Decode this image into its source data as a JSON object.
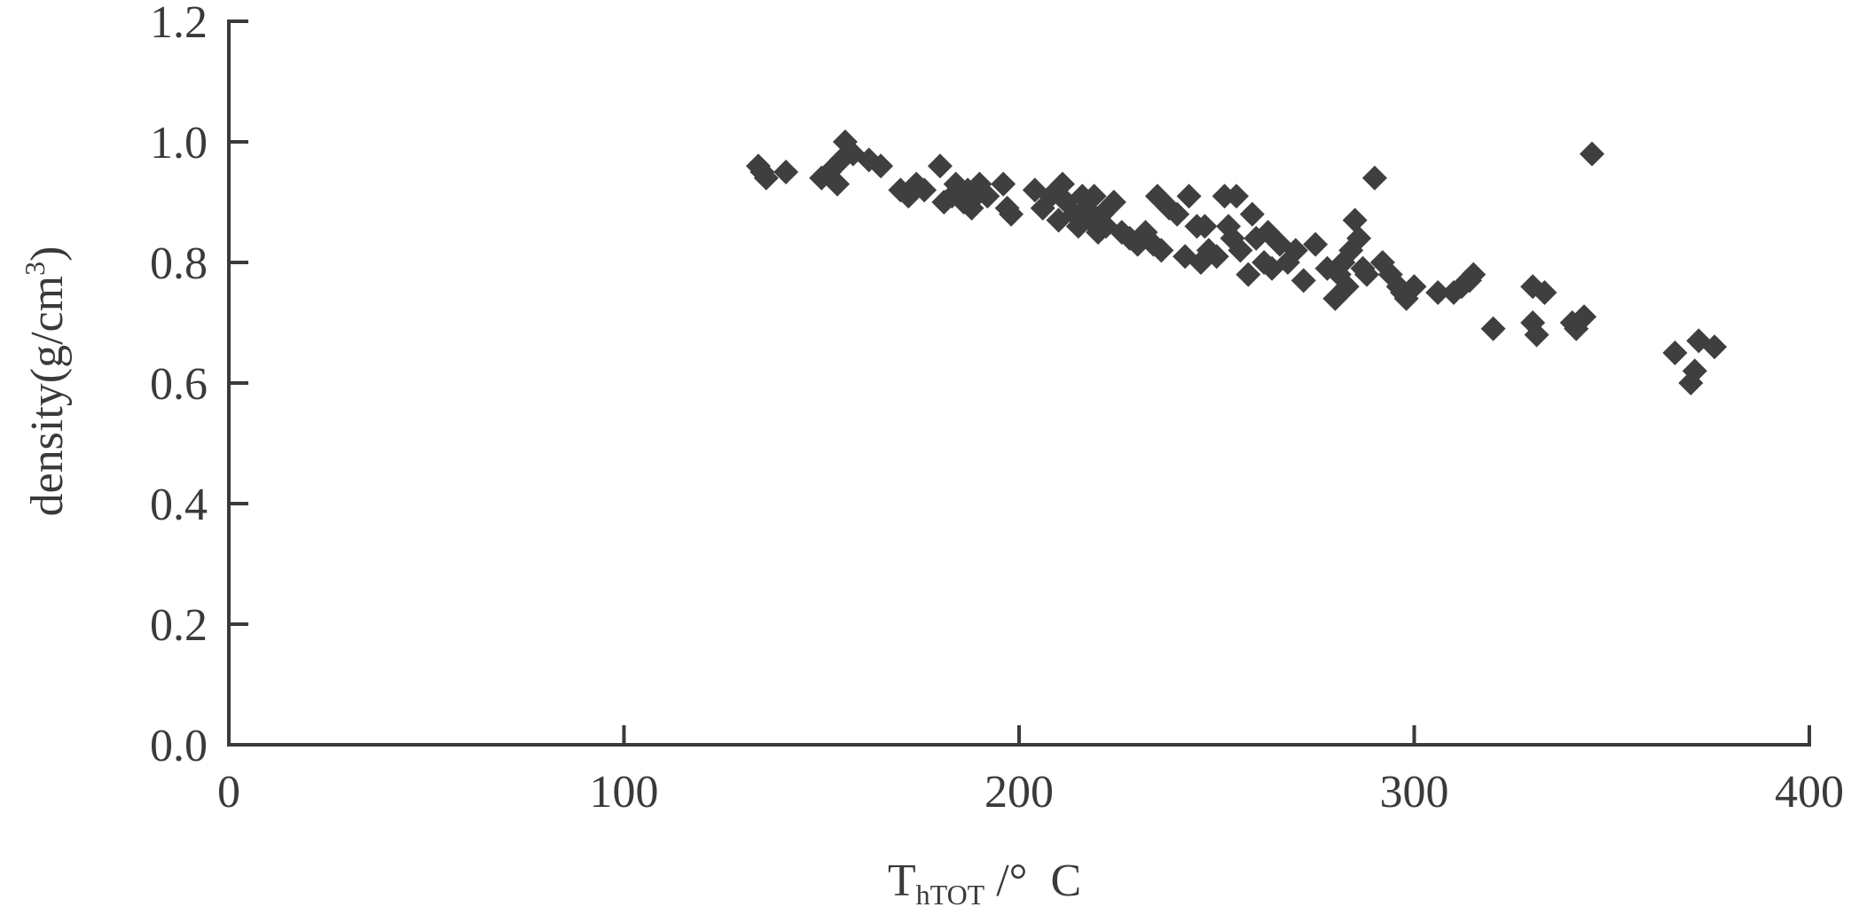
{
  "chart_data": {
    "type": "scatter",
    "xlabel": {
      "main": "T",
      "sub": "hTOT",
      "rest": " /°  C"
    },
    "ylabel": {
      "main": "density(g/cm",
      "sup": "3",
      "end": ")"
    },
    "xlim": [
      0,
      400
    ],
    "ylim": [
      0,
      1.2
    ],
    "xticks": [
      "0",
      "100",
      "200",
      "300",
      "400"
    ],
    "yticks": [
      "0.0",
      "0.2",
      "0.4",
      "0.6",
      "0.8",
      "1.0",
      "1.2"
    ],
    "grid": false,
    "legend": "none",
    "marker": "diamond",
    "color": "#3f3f3f",
    "points": [
      [
        134,
        0.96
      ],
      [
        135,
        0.95
      ],
      [
        136,
        0.94
      ],
      [
        141,
        0.95
      ],
      [
        150,
        0.94
      ],
      [
        152,
        0.95
      ],
      [
        154,
        0.93
      ],
      [
        155,
        0.97
      ],
      [
        156,
        1.0
      ],
      [
        158,
        0.98
      ],
      [
        162,
        0.97
      ],
      [
        165,
        0.96
      ],
      [
        170,
        0.92
      ],
      [
        172,
        0.91
      ],
      [
        174,
        0.93
      ],
      [
        176,
        0.92
      ],
      [
        180,
        0.96
      ],
      [
        181,
        0.9
      ],
      [
        183,
        0.91
      ],
      [
        184,
        0.93
      ],
      [
        186,
        0.9
      ],
      [
        187,
        0.92
      ],
      [
        188,
        0.89
      ],
      [
        189,
        0.91
      ],
      [
        190,
        0.93
      ],
      [
        192,
        0.91
      ],
      [
        196,
        0.93
      ],
      [
        197,
        0.89
      ],
      [
        198,
        0.88
      ],
      [
        204,
        0.92
      ],
      [
        206,
        0.89
      ],
      [
        208,
        0.91
      ],
      [
        210,
        0.87
      ],
      [
        211,
        0.93
      ],
      [
        212,
        0.9
      ],
      [
        214,
        0.88
      ],
      [
        215,
        0.86
      ],
      [
        216,
        0.91
      ],
      [
        217,
        0.89
      ],
      [
        218,
        0.87
      ],
      [
        219,
        0.91
      ],
      [
        220,
        0.85
      ],
      [
        221,
        0.88
      ],
      [
        222,
        0.86
      ],
      [
        224,
        0.9
      ],
      [
        226,
        0.85
      ],
      [
        228,
        0.84
      ],
      [
        230,
        0.83
      ],
      [
        232,
        0.85
      ],
      [
        234,
        0.83
      ],
      [
        235,
        0.91
      ],
      [
        236,
        0.82
      ],
      [
        238,
        0.89
      ],
      [
        240,
        0.88
      ],
      [
        242,
        0.81
      ],
      [
        243,
        0.91
      ],
      [
        245,
        0.86
      ],
      [
        246,
        0.8
      ],
      [
        247,
        0.86
      ],
      [
        248,
        0.82
      ],
      [
        250,
        0.81
      ],
      [
        252,
        0.91
      ],
      [
        253,
        0.86
      ],
      [
        254,
        0.84
      ],
      [
        255,
        0.91
      ],
      [
        256,
        0.82
      ],
      [
        258,
        0.78
      ],
      [
        259,
        0.88
      ],
      [
        260,
        0.84
      ],
      [
        262,
        0.8
      ],
      [
        263,
        0.85
      ],
      [
        264,
        0.79
      ],
      [
        266,
        0.83
      ],
      [
        268,
        0.8
      ],
      [
        270,
        0.82
      ],
      [
        272,
        0.77
      ],
      [
        275,
        0.83
      ],
      [
        278,
        0.79
      ],
      [
        280,
        0.74
      ],
      [
        281,
        0.78
      ],
      [
        282,
        0.8
      ],
      [
        283,
        0.76
      ],
      [
        284,
        0.82
      ],
      [
        285,
        0.87
      ],
      [
        286,
        0.84
      ],
      [
        287,
        0.79
      ],
      [
        288,
        0.78
      ],
      [
        290,
        0.94
      ],
      [
        292,
        0.8
      ],
      [
        294,
        0.78
      ],
      [
        296,
        0.76
      ],
      [
        297,
        0.75
      ],
      [
        298,
        0.74
      ],
      [
        300,
        0.76
      ],
      [
        306,
        0.75
      ],
      [
        310,
        0.75
      ],
      [
        312,
        0.76
      ],
      [
        314,
        0.77
      ],
      [
        315,
        0.78
      ],
      [
        320,
        0.69
      ],
      [
        330,
        0.76
      ],
      [
        330,
        0.7
      ],
      [
        331,
        0.68
      ],
      [
        333,
        0.75
      ],
      [
        340,
        0.7
      ],
      [
        341,
        0.69
      ],
      [
        343,
        0.71
      ],
      [
        345,
        0.98
      ],
      [
        366,
        0.65
      ],
      [
        370,
        0.6
      ],
      [
        371,
        0.62
      ],
      [
        372,
        0.67
      ],
      [
        376,
        0.66
      ]
    ]
  }
}
